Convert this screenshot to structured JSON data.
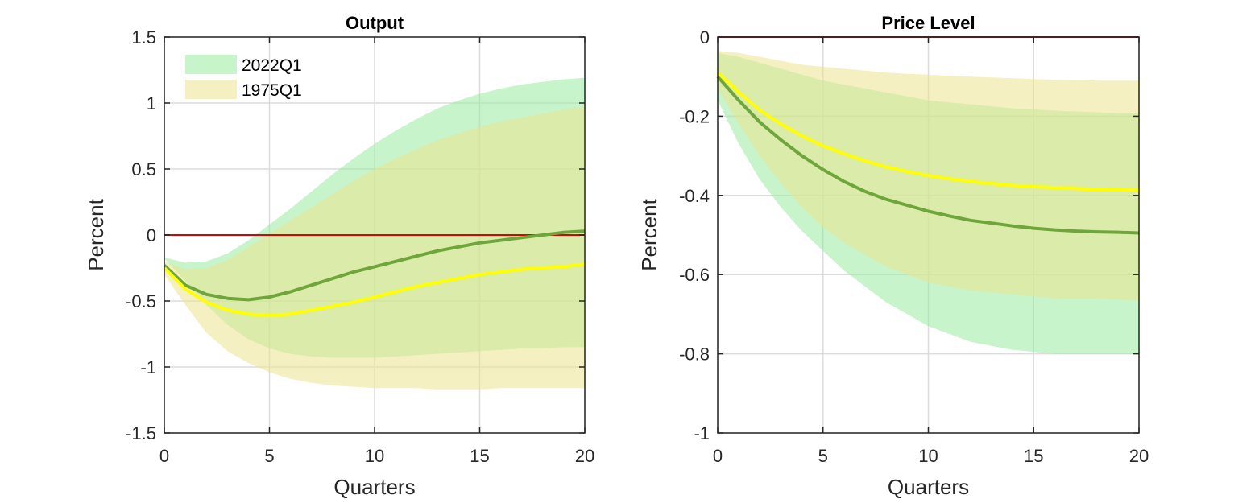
{
  "colors": {
    "band_2022": "#9beba0",
    "band_1975": "#ebe38f",
    "line_2022": "#6fa63c",
    "line_1975": "#ffff00",
    "zero_line": "#e00000",
    "grid": "#dcdcdc",
    "axis": "#262626"
  },
  "chart_data": [
    {
      "type": "area",
      "title": "Output",
      "xlabel": "Quarters",
      "ylabel": "Percent",
      "xlim": [
        0,
        20
      ],
      "ylim": [
        -1.5,
        1.5
      ],
      "xticks": [
        0,
        5,
        10,
        15,
        20
      ],
      "yticks": [
        -1.5,
        -1,
        -0.5,
        0,
        0.5,
        1,
        1.5
      ],
      "ytick_labels": [
        "-1.5",
        "-1",
        "-0.5",
        "0",
        "0.5",
        "1",
        "1.5"
      ],
      "grid": true,
      "legend": {
        "placement": "top-left",
        "entries": [
          "2022Q1",
          "1975Q1"
        ]
      },
      "reference_line": 0,
      "x": [
        0,
        1,
        2,
        3,
        4,
        5,
        6,
        7,
        8,
        9,
        10,
        11,
        12,
        13,
        14,
        15,
        16,
        17,
        18,
        19,
        20
      ],
      "series": [
        {
          "name": "2022Q1",
          "kind": "band",
          "lower": [
            -0.18,
            -0.35,
            -0.53,
            -0.68,
            -0.79,
            -0.86,
            -0.9,
            -0.92,
            -0.93,
            -0.93,
            -0.93,
            -0.92,
            -0.91,
            -0.9,
            -0.89,
            -0.88,
            -0.87,
            -0.86,
            -0.86,
            -0.85,
            -0.85
          ],
          "upper": [
            -0.17,
            -0.21,
            -0.2,
            -0.14,
            -0.04,
            0.08,
            0.2,
            0.33,
            0.46,
            0.58,
            0.69,
            0.79,
            0.88,
            0.96,
            1.02,
            1.07,
            1.11,
            1.14,
            1.16,
            1.18,
            1.19
          ]
        },
        {
          "name": "1975Q1",
          "kind": "band",
          "lower": [
            -0.3,
            -0.53,
            -0.74,
            -0.88,
            -0.97,
            -1.04,
            -1.09,
            -1.12,
            -1.14,
            -1.15,
            -1.16,
            -1.16,
            -1.16,
            -1.17,
            -1.17,
            -1.17,
            -1.16,
            -1.16,
            -1.16,
            -1.16,
            -1.16
          ],
          "upper": [
            -0.2,
            -0.26,
            -0.25,
            -0.19,
            -0.09,
            0.01,
            0.11,
            0.21,
            0.31,
            0.41,
            0.5,
            0.58,
            0.65,
            0.72,
            0.77,
            0.82,
            0.86,
            0.89,
            0.92,
            0.95,
            0.97
          ]
        },
        {
          "name": "2022Q1",
          "kind": "median",
          "values": [
            -0.23,
            -0.38,
            -0.45,
            -0.48,
            -0.49,
            -0.47,
            -0.43,
            -0.38,
            -0.33,
            -0.28,
            -0.24,
            -0.2,
            -0.16,
            -0.12,
            -0.09,
            -0.06,
            -0.04,
            -0.02,
            0.0,
            0.02,
            0.03
          ]
        },
        {
          "name": "1975Q1",
          "kind": "median",
          "values": [
            -0.25,
            -0.41,
            -0.51,
            -0.57,
            -0.6,
            -0.61,
            -0.6,
            -0.57,
            -0.54,
            -0.51,
            -0.47,
            -0.43,
            -0.39,
            -0.36,
            -0.33,
            -0.3,
            -0.28,
            -0.26,
            -0.25,
            -0.24,
            -0.22
          ]
        }
      ]
    },
    {
      "type": "area",
      "title": "Price Level",
      "xlabel": "Quarters",
      "ylabel": "Percent",
      "xlim": [
        0,
        20
      ],
      "ylim": [
        -1,
        0
      ],
      "xticks": [
        0,
        5,
        10,
        15,
        20
      ],
      "yticks": [
        -1,
        -0.8,
        -0.6,
        -0.4,
        -0.2,
        0
      ],
      "ytick_labels": [
        "-1",
        "-0.8",
        "-0.6",
        "-0.4",
        "-0.2",
        "0"
      ],
      "grid": true,
      "reference_line": 0,
      "x": [
        0,
        1,
        2,
        3,
        4,
        5,
        6,
        7,
        8,
        9,
        10,
        11,
        12,
        13,
        14,
        15,
        16,
        17,
        18,
        19,
        20
      ],
      "series": [
        {
          "name": "2022Q1",
          "kind": "band",
          "lower": [
            -0.16,
            -0.27,
            -0.36,
            -0.43,
            -0.49,
            -0.54,
            -0.59,
            -0.63,
            -0.67,
            -0.7,
            -0.73,
            -0.75,
            -0.77,
            -0.78,
            -0.79,
            -0.795,
            -0.8,
            -0.8,
            -0.8,
            -0.8,
            -0.8
          ],
          "upper": [
            -0.04,
            -0.05,
            -0.065,
            -0.08,
            -0.095,
            -0.11,
            -0.12,
            -0.13,
            -0.14,
            -0.15,
            -0.16,
            -0.165,
            -0.17,
            -0.175,
            -0.18,
            -0.183,
            -0.186,
            -0.188,
            -0.19,
            -0.192,
            -0.193
          ]
        },
        {
          "name": "1975Q1",
          "kind": "band",
          "lower": [
            -0.13,
            -0.22,
            -0.3,
            -0.37,
            -0.43,
            -0.48,
            -0.52,
            -0.55,
            -0.58,
            -0.6,
            -0.62,
            -0.63,
            -0.64,
            -0.645,
            -0.65,
            -0.655,
            -0.66,
            -0.66,
            -0.66,
            -0.663,
            -0.665
          ],
          "upper": [
            -0.035,
            -0.04,
            -0.05,
            -0.06,
            -0.07,
            -0.075,
            -0.08,
            -0.085,
            -0.09,
            -0.093,
            -0.095,
            -0.098,
            -0.1,
            -0.102,
            -0.104,
            -0.106,
            -0.108,
            -0.109,
            -0.11,
            -0.11,
            -0.11
          ]
        },
        {
          "name": "2022Q1",
          "kind": "median",
          "values": [
            -0.1,
            -0.16,
            -0.215,
            -0.26,
            -0.3,
            -0.335,
            -0.365,
            -0.39,
            -0.41,
            -0.425,
            -0.44,
            -0.452,
            -0.463,
            -0.47,
            -0.477,
            -0.483,
            -0.487,
            -0.49,
            -0.492,
            -0.493,
            -0.495
          ]
        },
        {
          "name": "1975Q1",
          "kind": "median",
          "values": [
            -0.09,
            -0.14,
            -0.185,
            -0.22,
            -0.25,
            -0.275,
            -0.295,
            -0.313,
            -0.328,
            -0.34,
            -0.35,
            -0.358,
            -0.365,
            -0.37,
            -0.375,
            -0.378,
            -0.38,
            -0.383,
            -0.385,
            -0.386,
            -0.387
          ]
        }
      ]
    }
  ]
}
